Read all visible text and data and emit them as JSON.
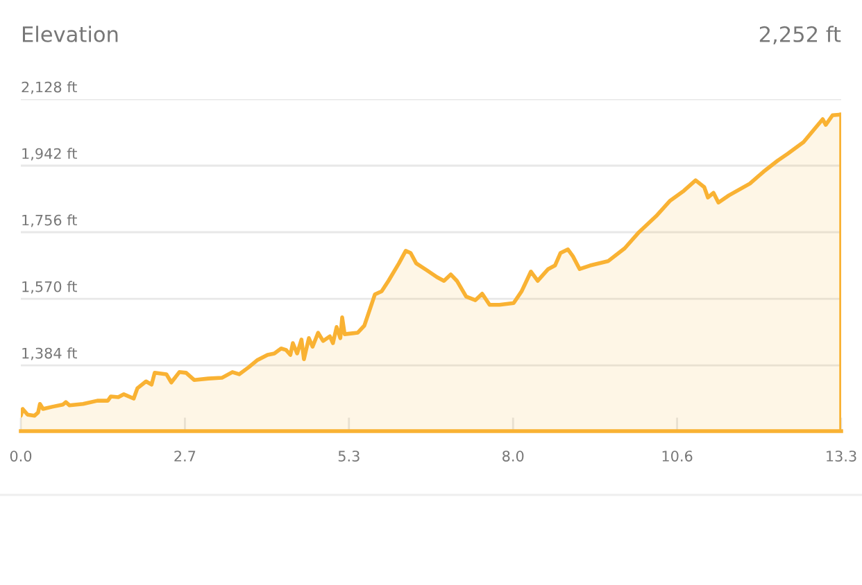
{
  "chart_data": {
    "type": "area",
    "title": "Elevation",
    "subtitle": "2,252 ft",
    "x": [
      0,
      0.03,
      0.11,
      0.22,
      0.28,
      0.31,
      0.36,
      0.51,
      0.68,
      0.73,
      0.79,
      1.01,
      1.24,
      1.41,
      1.46,
      1.58,
      1.67,
      1.83,
      1.89,
      2.03,
      2.12,
      2.17,
      2.36,
      2.44,
      2.57,
      2.68,
      2.81,
      3.04,
      3.26,
      3.43,
      3.54,
      3.69,
      3.83,
      4.0,
      4.11,
      4.22,
      4.3,
      4.37,
      4.41,
      4.48,
      4.55,
      4.59,
      4.67,
      4.73,
      4.82,
      4.9,
      5.01,
      5.06,
      5.12,
      5.18,
      5.21,
      5.25,
      5.46,
      5.57,
      5.74,
      5.85,
      5.96,
      6.13,
      6.24,
      6.32,
      6.41,
      6.58,
      6.75,
      6.86,
      6.97,
      7.07,
      7.22,
      7.37,
      7.48,
      7.6,
      7.76,
      7.99,
      8.12,
      8.27,
      8.38,
      8.55,
      8.66,
      8.75,
      8.87,
      8.95,
      9.06,
      9.23,
      9.52,
      9.79,
      10.01,
      10.3,
      10.52,
      10.75,
      10.94,
      11.08,
      11.14,
      11.23,
      11.31,
      11.48,
      11.82,
      12.04,
      12.27,
      12.43,
      12.69,
      12.88,
      13.0,
      13.05,
      13.16,
      13.3
    ],
    "series": [
      {
        "color": "#f9b233",
        "values": [
          1243,
          1262,
          1246,
          1243,
          1252,
          1276,
          1262,
          1268,
          1274,
          1281,
          1272,
          1276,
          1285,
          1285,
          1297,
          1295,
          1303,
          1291,
          1320,
          1339,
          1330,
          1363,
          1359,
          1336,
          1365,
          1363,
          1343,
          1347,
          1349,
          1365,
          1359,
          1378,
          1398,
          1413,
          1417,
          1431,
          1427,
          1413,
          1446,
          1417,
          1456,
          1401,
          1460,
          1436,
          1475,
          1452,
          1465,
          1446,
          1491,
          1460,
          1518,
          1471,
          1475,
          1495,
          1582,
          1591,
          1620,
          1669,
          1704,
          1698,
          1669,
          1650,
          1630,
          1620,
          1638,
          1620,
          1576,
          1566,
          1584,
          1553,
          1553,
          1558,
          1591,
          1646,
          1620,
          1653,
          1663,
          1698,
          1708,
          1689,
          1653,
          1663,
          1675,
          1711,
          1754,
          1801,
          1843,
          1872,
          1901,
          1882,
          1853,
          1866,
          1839,
          1859,
          1892,
          1925,
          1956,
          1975,
          2008,
          2047,
          2072,
          2056,
          2083,
          2085
        ]
      }
    ],
    "xlim": [
      0,
      13.3
    ],
    "ylim": [
      1200,
      2128
    ],
    "xticks": [
      {
        "value": 0,
        "label": "0.0"
      },
      {
        "value": 2.66,
        "label": "2.7"
      },
      {
        "value": 5.32,
        "label": "5.3"
      },
      {
        "value": 7.98,
        "label": "8.0"
      },
      {
        "value": 10.64,
        "label": "10.6"
      },
      {
        "value": 13.3,
        "label": "13.3"
      }
    ],
    "yticks": [
      {
        "value": 1384,
        "label": "1,384 ft"
      },
      {
        "value": 1570,
        "label": "1,570 ft"
      },
      {
        "value": 1756,
        "label": "1,756 ft"
      },
      {
        "value": 1942,
        "label": "1,942 ft"
      },
      {
        "value": 2128,
        "label": "2,128 ft"
      }
    ],
    "grid": "y",
    "legend": false
  }
}
